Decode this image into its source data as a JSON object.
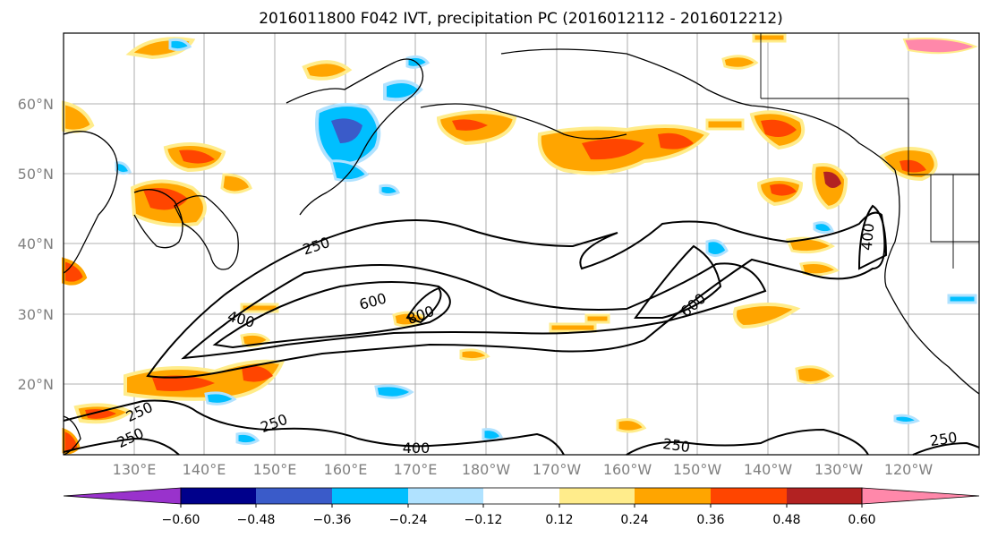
{
  "title": "2016011800 F042 IVT, precipitation PC (2016012112 - 2016012212)",
  "lat_labels": [
    "60°N",
    "50°N",
    "40°N",
    "30°N",
    "20°N"
  ],
  "lon_labels": [
    "130°E",
    "140°E",
    "150°E",
    "160°E",
    "170°E",
    "180°W",
    "170°W",
    "160°W",
    "150°W",
    "140°W",
    "130°W",
    "120°W"
  ],
  "contour_labels": [
    "250",
    "400",
    "600",
    "800",
    "600",
    "400",
    "250",
    "250",
    "250",
    "400",
    "250",
    "250"
  ],
  "colorbar": {
    "colors": [
      "#9932cc",
      "#00008b",
      "#3a5bc9",
      "#00bfff",
      "#b0e2ff",
      "#ffffff",
      "#ffec8b",
      "#ffa500",
      "#ff4500",
      "#b22222",
      "#ff88aa"
    ],
    "tick_labels": [
      "−0.60",
      "−0.48",
      "−0.36",
      "−0.24",
      "−0.12",
      "0.12",
      "0.24",
      "0.36",
      "0.48",
      "0.60"
    ]
  },
  "map": {
    "lat_range": [
      10,
      70
    ],
    "lon_range": [
      "120°E",
      "250°E"
    ],
    "contour_levels": [
      250,
      400,
      600,
      800
    ],
    "grid": true
  }
}
